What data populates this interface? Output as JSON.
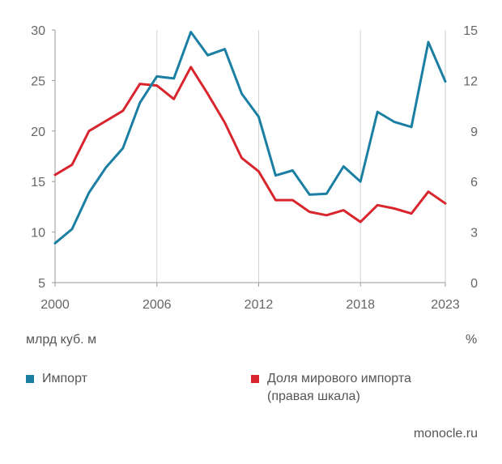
{
  "chart_data": {
    "type": "line",
    "x": [
      2000,
      2001,
      2002,
      2003,
      2004,
      2005,
      2006,
      2007,
      2008,
      2009,
      2010,
      2011,
      2012,
      2013,
      2014,
      2015,
      2016,
      2017,
      2018,
      2019,
      2020,
      2021,
      2022,
      2023
    ],
    "series": [
      {
        "name": "Импорт",
        "axis": "left",
        "color": "#1b7fa3",
        "values": [
          8.9,
          10.3,
          13.9,
          16.4,
          18.3,
          22.8,
          25.4,
          25.2,
          29.8,
          27.5,
          28.1,
          23.7,
          21.4,
          15.6,
          16.1,
          13.7,
          13.8,
          16.5,
          15.0,
          21.9,
          20.9,
          20.4,
          28.8,
          24.9
        ]
      },
      {
        "name": "Доля мирового импорта (правая шкала)",
        "axis": "right",
        "color": "#d9262e",
        "values": [
          6.4,
          7.0,
          9.0,
          9.6,
          10.2,
          11.8,
          11.7,
          10.9,
          12.8,
          11.2,
          9.5,
          7.4,
          6.6,
          4.9,
          4.9,
          4.2,
          4.0,
          4.3,
          3.6,
          4.6,
          4.4,
          4.1,
          5.4,
          4.7
        ]
      }
    ],
    "x_ticks": [
      "2000",
      "2006",
      "2012",
      "2018",
      "2023"
    ],
    "y_left_ticks": [
      "5",
      "10",
      "15",
      "20",
      "25",
      "30"
    ],
    "y_right_ticks": [
      "0",
      "3",
      "6",
      "9",
      "12",
      "15"
    ],
    "ylim_left": [
      5,
      30
    ],
    "ylim_right": [
      0,
      15
    ],
    "xlim": [
      2000,
      2023
    ],
    "grid": "vertical",
    "left_unit": "млрд куб. м",
    "right_unit": "%"
  },
  "legend": {
    "import_label": "Импорт",
    "share_label_line1": "Доля мирового импорта",
    "share_label_line2": "(правая шкала)",
    "import_color": "#1b7fa3",
    "share_color": "#d9262e"
  },
  "source": "monocle.ru"
}
